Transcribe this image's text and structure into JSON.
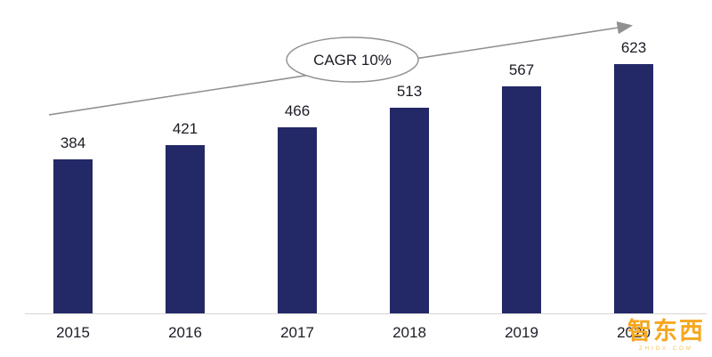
{
  "chart_data": {
    "type": "bar",
    "title": "",
    "xlabel": "",
    "ylabel": "",
    "categories": [
      "2015",
      "2016",
      "2017",
      "2018",
      "2019",
      "2020"
    ],
    "values": [
      384,
      421,
      466,
      513,
      567,
      623
    ],
    "ylim": [
      0,
      700
    ],
    "grid": false,
    "legend_position": "none",
    "annotation": "CAGR 10%",
    "bar_color": "#232866",
    "value_label_color": "#1c1c26",
    "arrow_color": "#909090",
    "axis_line_color": "#d6d6d6"
  },
  "watermark": {
    "text": "智东西",
    "subtext": "ZHIDX.COM",
    "color": "#f6a71f"
  }
}
